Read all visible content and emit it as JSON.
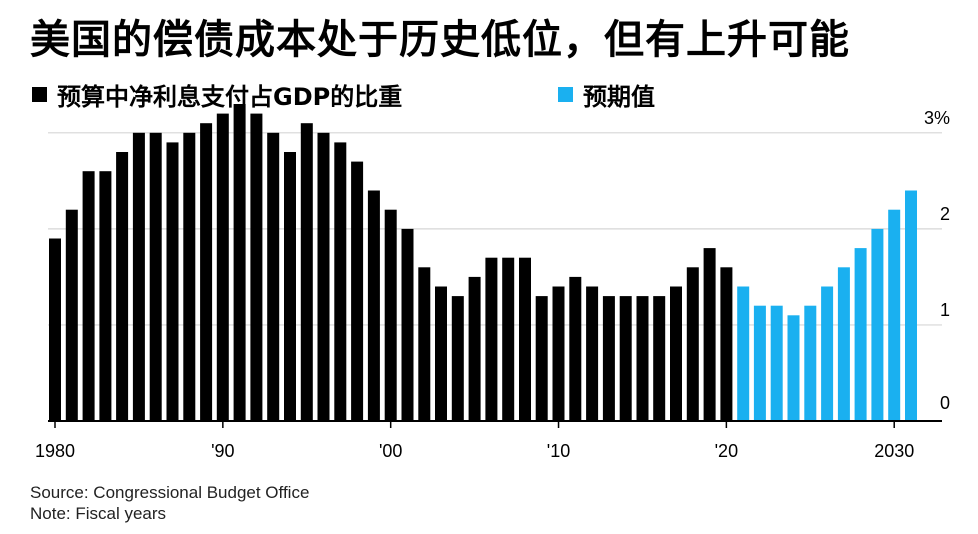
{
  "chart_data": {
    "type": "bar",
    "title": "美国的偿债成本处于历史低位，但有上升可能",
    "legend": [
      {
        "label": "预算中净利息支付占GDP的比重",
        "color": "#000000"
      },
      {
        "label": "预期值",
        "color": "#1ab0f0"
      }
    ],
    "x_years": [
      1980,
      1981,
      1982,
      1983,
      1984,
      1985,
      1986,
      1987,
      1988,
      1989,
      1990,
      1991,
      1992,
      1993,
      1994,
      1995,
      1996,
      1997,
      1998,
      1999,
      2000,
      2001,
      2002,
      2003,
      2004,
      2005,
      2006,
      2007,
      2008,
      2009,
      2010,
      2011,
      2012,
      2013,
      2014,
      2015,
      2016,
      2017,
      2018,
      2019,
      2020,
      2021,
      2022,
      2023,
      2024,
      2025,
      2026,
      2027,
      2028,
      2029,
      2030,
      2031
    ],
    "series": [
      {
        "name": "预算中净利息支付占GDP的比重",
        "color": "#000000",
        "x_start": 1980,
        "values": [
          1.9,
          2.2,
          2.6,
          2.6,
          2.8,
          3.0,
          3.0,
          2.9,
          3.0,
          3.1,
          3.2,
          3.3,
          3.2,
          3.0,
          2.8,
          3.1,
          3.0,
          2.9,
          2.7,
          2.4,
          2.2,
          2.0,
          1.6,
          1.4,
          1.3,
          1.5,
          1.7,
          1.7,
          1.7,
          1.3,
          1.4,
          1.5,
          1.4,
          1.3,
          1.3,
          1.3,
          1.3,
          1.4,
          1.6,
          1.8,
          1.6
        ]
      },
      {
        "name": "预期值",
        "color": "#1ab0f0",
        "x_start": 2021,
        "values": [
          1.4,
          1.2,
          1.2,
          1.1,
          1.2,
          1.4,
          1.6,
          1.8,
          2.0,
          2.2,
          2.4
        ]
      }
    ],
    "x_tick_values": [
      1980,
      1990,
      2000,
      2010,
      2020,
      2030
    ],
    "x_tick_labels": [
      "1980",
      "'90",
      "'00",
      "'10",
      "'20",
      "2030"
    ],
    "y_ticks": [
      {
        "value": 0,
        "label": "0"
      },
      {
        "value": 1,
        "label": "1"
      },
      {
        "value": 2,
        "label": "2"
      },
      {
        "value": 3,
        "label": "3%"
      }
    ],
    "ylim": [
      0,
      3.3
    ],
    "xlabel": "",
    "ylabel": "",
    "grid": true,
    "y_axis_position": "right",
    "legend_position": "top-left"
  },
  "notes": {
    "source": "Source: Congressional Budget Office",
    "note": "Note: Fiscal years"
  }
}
